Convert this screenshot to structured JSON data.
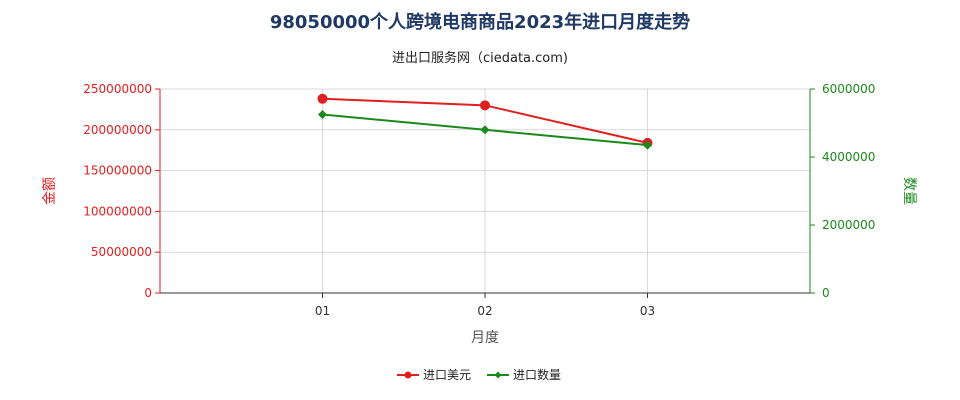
{
  "chart_data": {
    "type": "line",
    "title": "98050000个人跨境电商商品2023年进口月度走势",
    "subtitle": "进出口服务网（ciedata.com)",
    "xlabel": "月度",
    "categories": [
      "01",
      "02",
      "03"
    ],
    "y_left": {
      "label": "金额",
      "range": [
        0,
        250000000
      ],
      "ticks": [
        "0",
        "50000000",
        "100000000",
        "150000000",
        "200000000",
        "250000000"
      ],
      "color": "#e02020"
    },
    "y_right": {
      "label": "数量",
      "range": [
        0,
        6000000
      ],
      "ticks": [
        "0",
        "2000000",
        "4000000",
        "6000000"
      ],
      "color": "#1a8a1a"
    },
    "series": [
      {
        "name": "进口美元",
        "axis": "left",
        "color": "#e02020",
        "marker": "circle",
        "values": [
          238000000,
          230000000,
          184000000
        ]
      },
      {
        "name": "进口数量",
        "axis": "right",
        "color": "#1a8a1a",
        "marker": "diamond",
        "values": [
          5250000,
          4800000,
          4350000
        ]
      }
    ],
    "grid": true,
    "legend_position": "bottom-center"
  }
}
